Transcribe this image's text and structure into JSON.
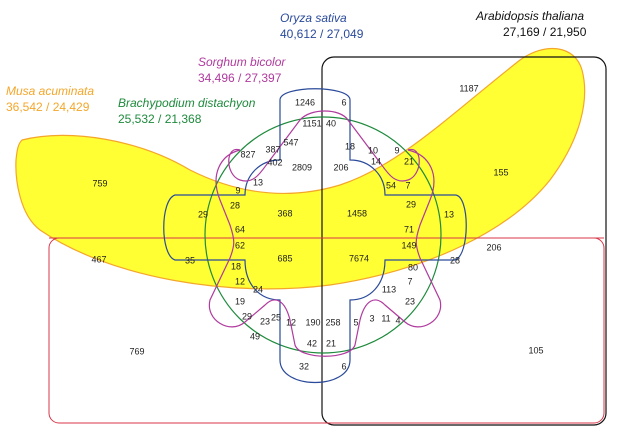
{
  "species": {
    "musa": {
      "name": "Musa acuminata",
      "count": "36,542 / 24,429",
      "color": "#f4a62a",
      "fill": "#ffff33"
    },
    "brachypodium": {
      "name": "Brachypodium distachyon",
      "count": "25,532 / 21,368",
      "color": "#1e8a3c"
    },
    "sorghum": {
      "name": "Sorghum bicolor",
      "count": "34,496 / 27,397",
      "color": "#b03a9e"
    },
    "oryza": {
      "name": "Oryza sativa",
      "count": "40,612 / 27,049",
      "color": "#2a4a9a"
    },
    "arabidopsis": {
      "name": "Arabidopsis thaliana",
      "count": "27,169 / 21,950",
      "color": "#111111"
    }
  },
  "region_counts": [
    "1187",
    "155",
    "206",
    "105",
    "769",
    "759",
    "467",
    "1246",
    "6",
    "1151",
    "40",
    "18",
    "10",
    "9",
    "827",
    "387",
    "547",
    "14",
    "21",
    "402",
    "2809",
    "206",
    "54",
    "7",
    "9",
    "13",
    "29",
    "28",
    "368",
    "1458",
    "29",
    "13",
    "64",
    "71",
    "62",
    "149",
    "35",
    "685",
    "7674",
    "28",
    "18",
    "80",
    "12",
    "7",
    "24",
    "113",
    "19",
    "23",
    "3",
    "11",
    "4",
    "29",
    "23",
    "25",
    "12",
    "190",
    "258",
    "5",
    "49",
    "42",
    "21",
    "32",
    "6"
  ]
}
